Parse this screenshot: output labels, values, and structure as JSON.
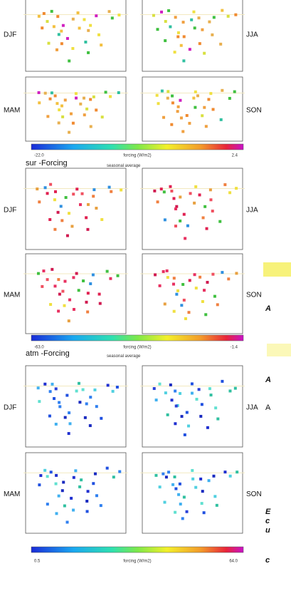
{
  "blocks": [
    {
      "seasons": [
        "DJF",
        "JJA",
        "MAM",
        "SON"
      ],
      "colorbar": {
        "min": "-22.0",
        "label": "forcing (W/m2)",
        "max": "2.4"
      }
    },
    {
      "title": "sur -Forcing",
      "subtitle": "seasonal average",
      "seasons": [
        "DJF",
        "JJA",
        "MAM",
        "SON"
      ],
      "colorbar": {
        "min": "-63.0",
        "label": "forcing (W/m2)",
        "max": "-1.4"
      }
    },
    {
      "title": "atm -Forcing",
      "subtitle": "seasonal average",
      "seasons": [
        "DJF",
        "JJA",
        "MAM",
        "SON"
      ],
      "colorbar": {
        "min": "0.5",
        "label": "forcing (W/m2)",
        "max": "64.0"
      }
    }
  ],
  "side_fragments": [
    "A",
    "A",
    "A",
    "E",
    "c",
    "u",
    "c"
  ]
}
